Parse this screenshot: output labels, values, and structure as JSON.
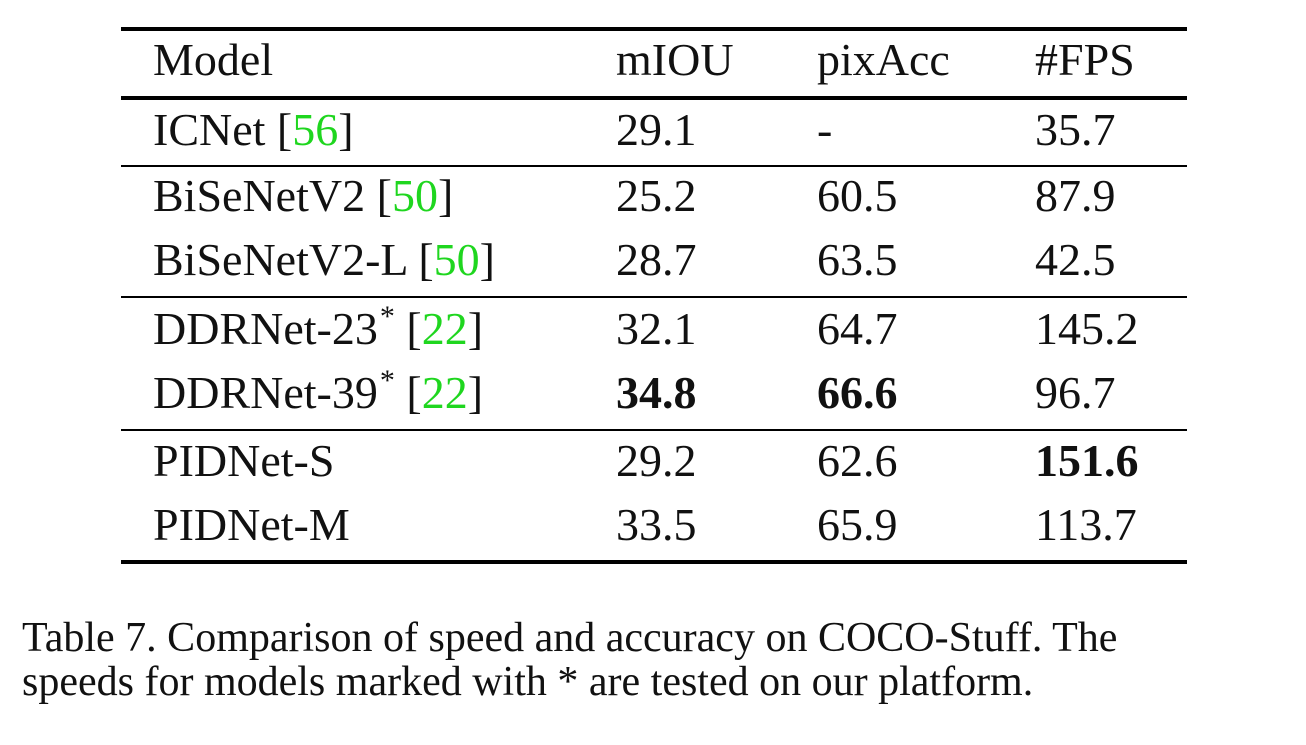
{
  "table": {
    "headers": [
      "Model",
      "mIOU",
      "pixAcc",
      "#FPS"
    ],
    "rows": [
      {
        "model": "ICNet",
        "star": "",
        "cite": "56",
        "miou": "29.1",
        "pixacc": "-",
        "fps": "35.7"
      },
      {
        "model": "BiSeNetV2",
        "star": "",
        "cite": "50",
        "miou": "25.2",
        "pixacc": "60.5",
        "fps": "87.9"
      },
      {
        "model": "BiSeNetV2-L",
        "star": "",
        "cite": "50",
        "miou": "28.7",
        "pixacc": "63.5",
        "fps": "42.5"
      },
      {
        "model": "DDRNet-23",
        "star": "*",
        "cite": "22",
        "miou": "32.1",
        "pixacc": "64.7",
        "fps": "145.2"
      },
      {
        "model": "DDRNet-39",
        "star": "*",
        "cite": "22",
        "miou": "34.8",
        "pixacc": "66.6",
        "fps": "96.7"
      },
      {
        "model": "PIDNet-S",
        "star": "",
        "cite": "",
        "miou": "29.2",
        "pixacc": "62.6",
        "fps": "151.6"
      },
      {
        "model": "PIDNet-M",
        "star": "",
        "cite": "",
        "miou": "33.5",
        "pixacc": "65.9",
        "fps": "113.7"
      }
    ]
  },
  "caption": {
    "line1": "Table 7. Comparison of speed and accuracy on COCO-Stuff. The",
    "line2": "speeds for models marked with * are tested on our platform."
  }
}
